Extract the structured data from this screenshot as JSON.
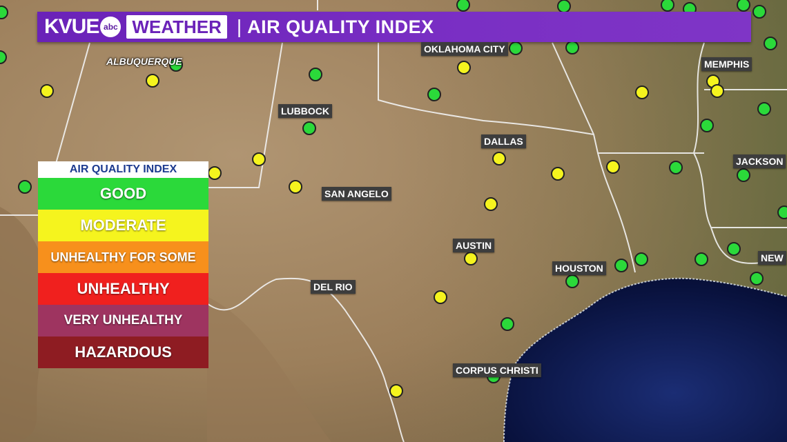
{
  "header": {
    "brand": "KVUE",
    "network_logo": "abc",
    "section": "WEATHER",
    "separator": "|",
    "title": "AIR QUALITY INDEX"
  },
  "legend": {
    "title": "AIR QUALITY INDEX",
    "items": [
      {
        "label": "GOOD",
        "color": "#2bd93a"
      },
      {
        "label": "MODERATE",
        "color": "#f5f41e"
      },
      {
        "label": "UNHEALTHY FOR SOME",
        "color": "#f7901c"
      },
      {
        "label": "UNHEALTHY",
        "color": "#f0201e"
      },
      {
        "label": "VERY UNHEALTHY",
        "color": "#9e3460"
      },
      {
        "label": "HAZARDOUS",
        "color": "#8e1c22"
      }
    ]
  },
  "cities": [
    {
      "name": "ALBUQUERQUE",
      "style": "italic"
    },
    {
      "name": "OKLAHOMA CITY"
    },
    {
      "name": "MEMPHIS"
    },
    {
      "name": "LUBBOCK"
    },
    {
      "name": "DALLAS"
    },
    {
      "name": "JACKSON"
    },
    {
      "name": "SAN ANGELO"
    },
    {
      "name": "AUSTIN"
    },
    {
      "name": "HOUSTON"
    },
    {
      "name": "NEW"
    },
    {
      "name": "DEL RIO"
    },
    {
      "name": "CORPUS CHRISTI"
    }
  ],
  "colors": {
    "good": "#2bd93a",
    "moderate": "#f5f41e",
    "land": "#a98e6a",
    "water": "#0d1a4f",
    "header": "#6a22b8"
  },
  "stations": [
    {
      "aqi": "good"
    },
    {
      "aqi": "good"
    },
    {
      "aqi": "good"
    },
    {
      "aqi": "good"
    },
    {
      "aqi": "good"
    },
    {
      "aqi": "good"
    },
    {
      "aqi": "good"
    },
    {
      "aqi": "good"
    },
    {
      "aqi": "good"
    },
    {
      "aqi": "good"
    },
    {
      "aqi": "good"
    },
    {
      "aqi": "good"
    },
    {
      "aqi": "good"
    },
    {
      "aqi": "good"
    },
    {
      "aqi": "good"
    },
    {
      "aqi": "good"
    },
    {
      "aqi": "good"
    },
    {
      "aqi": "good"
    },
    {
      "aqi": "good"
    },
    {
      "aqi": "good"
    },
    {
      "aqi": "good"
    },
    {
      "aqi": "good"
    },
    {
      "aqi": "good"
    },
    {
      "aqi": "good"
    },
    {
      "aqi": "good"
    },
    {
      "aqi": "good"
    },
    {
      "aqi": "good"
    },
    {
      "aqi": "good"
    },
    {
      "aqi": "good"
    },
    {
      "aqi": "moderate"
    },
    {
      "aqi": "moderate"
    },
    {
      "aqi": "moderate"
    },
    {
      "aqi": "moderate"
    },
    {
      "aqi": "moderate"
    },
    {
      "aqi": "moderate"
    },
    {
      "aqi": "moderate"
    },
    {
      "aqi": "moderate"
    },
    {
      "aqi": "moderate"
    },
    {
      "aqi": "moderate"
    },
    {
      "aqi": "moderate"
    },
    {
      "aqi": "moderate"
    },
    {
      "aqi": "moderate"
    },
    {
      "aqi": "moderate"
    },
    {
      "aqi": "moderate"
    },
    {
      "aqi": "moderate"
    }
  ]
}
